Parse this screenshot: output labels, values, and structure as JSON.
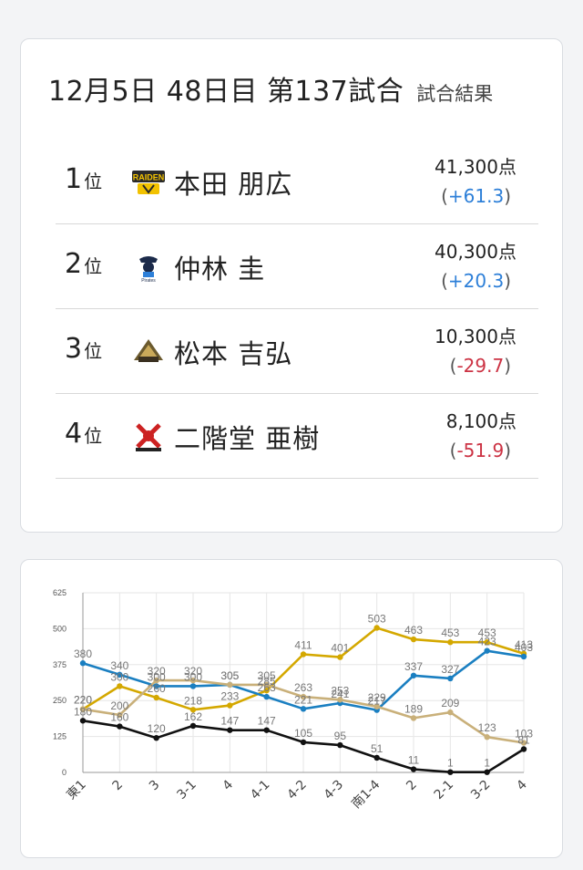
{
  "header": {
    "title": "12月5日  48日目  第137試合",
    "subtitle": "試合結果"
  },
  "players": [
    {
      "rank": "1",
      "rank_suffix": "位",
      "name": "本田 朋広",
      "score": "41,300点",
      "diff_open": "(",
      "diff": "+61.3",
      "diff_close": ")",
      "diff_sign": "positive",
      "logo": "raiden-logo"
    },
    {
      "rank": "2",
      "rank_suffix": "位",
      "name": "仲林 圭",
      "score": "40,300点",
      "diff_open": "(",
      "diff": "+20.3",
      "diff_close": ")",
      "diff_sign": "positive",
      "logo": "pirates-logo"
    },
    {
      "rank": "3",
      "rank_suffix": "位",
      "name": "松本 吉弘",
      "score": "10,300点",
      "diff_open": "(",
      "diff": "-29.7",
      "diff_close": ")",
      "diff_sign": "negative",
      "logo": "abemas-logo"
    },
    {
      "rank": "4",
      "rank_suffix": "位",
      "name": "二階堂 亜樹",
      "score": "8,100点",
      "diff_open": "(",
      "diff": "-51.9",
      "diff_close": ")",
      "diff_sign": "negative",
      "logo": "fu-rinkazan-logo"
    }
  ],
  "chart_data": {
    "type": "line",
    "categories": [
      "東1",
      "2",
      "3",
      "3-1",
      "4",
      "4-1",
      "4-2",
      "4-3",
      "南1-4",
      "2",
      "2-1",
      "3-2",
      "4"
    ],
    "ylim": [
      0,
      625
    ],
    "yticks": [
      "0",
      "125",
      "250",
      "375",
      "500",
      "625"
    ],
    "grid": true,
    "series": [
      {
        "color": "#d4a800",
        "values": [
          220,
          300,
          260,
          218,
          233,
          285,
          411,
          401,
          503,
          463,
          453,
          453,
          413
        ]
      },
      {
        "color": "#1a7fc1",
        "values": [
          380,
          340,
          300,
          300,
          305,
          263,
          221,
          241,
          217,
          337,
          327,
          423,
          403
        ]
      },
      {
        "color": "#c9b07a",
        "values": [
          220,
          200,
          320,
          320,
          305,
          305,
          263,
          253,
          229,
          189,
          209,
          123,
          103
        ]
      },
      {
        "color": "#111111",
        "values": [
          180,
          160,
          120,
          162,
          147,
          147,
          105,
          95,
          51,
          11,
          1,
          1,
          81
        ]
      }
    ]
  }
}
